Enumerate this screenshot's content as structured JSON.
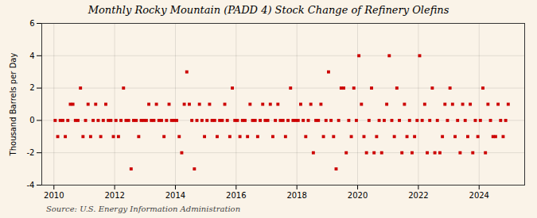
{
  "chart_data": {
    "type": "scatter",
    "title": "Monthly Rocky Mountain (PADD 4) Stock Change of Refinery Olefins",
    "ylabel": "Thousand Barrels per Day",
    "caption": "Source: U.S. Energy Information Administration",
    "color": "#cc0000",
    "marker": "square",
    "grid": true,
    "xlim": [
      2009.6,
      2025.5
    ],
    "xticks": [
      2010,
      2012,
      2014,
      2016,
      2018,
      2020,
      2022,
      2024
    ],
    "ylim": [
      -4,
      6
    ],
    "yticks": [
      -4,
      -2,
      0,
      2,
      4,
      6
    ],
    "x": [
      2010.0416666666667,
      2010.125,
      2010.2083333333333,
      2010.2916666666667,
      2010.375,
      2010.4583333333333,
      2010.5416666666667,
      2010.625,
      2010.7083333333333,
      2010.7916666666667,
      2010.875,
      2010.9583333333333,
      2011.0416666666667,
      2011.125,
      2011.2083333333333,
      2011.2916666666667,
      2011.375,
      2011.4583333333333,
      2011.5416666666667,
      2011.625,
      2011.7083333333333,
      2011.7916666666667,
      2011.875,
      2011.9583333333333,
      2012.0416666666667,
      2012.125,
      2012.2083333333333,
      2012.2916666666667,
      2012.375,
      2012.4583333333333,
      2012.5416666666667,
      2012.625,
      2012.7083333333333,
      2012.7916666666667,
      2012.875,
      2012.9583333333333,
      2013.0416666666667,
      2013.125,
      2013.2083333333333,
      2013.2916666666667,
      2013.375,
      2013.4583333333333,
      2013.5416666666667,
      2013.625,
      2013.7083333333333,
      2013.7916666666667,
      2013.875,
      2013.9583333333333,
      2014.0416666666667,
      2014.125,
      2014.2083333333333,
      2014.2916666666667,
      2014.375,
      2014.4583333333333,
      2014.5416666666667,
      2014.625,
      2014.7083333333333,
      2014.7916666666667,
      2014.875,
      2014.9583333333333,
      2015.0416666666667,
      2015.125,
      2015.2083333333333,
      2015.2916666666667,
      2015.375,
      2015.4583333333333,
      2015.5416666666667,
      2015.625,
      2015.7083333333333,
      2015.7916666666667,
      2015.875,
      2015.9583333333333,
      2016.0416666666667,
      2016.125,
      2016.2083333333333,
      2016.2916666666667,
      2016.375,
      2016.4583333333333,
      2016.5416666666667,
      2016.625,
      2016.7083333333333,
      2016.7916666666667,
      2016.875,
      2016.9583333333333,
      2017.0416666666667,
      2017.125,
      2017.2083333333333,
      2017.2916666666667,
      2017.375,
      2017.4583333333333,
      2017.5416666666667,
      2017.625,
      2017.7083333333333,
      2017.7916666666667,
      2017.875,
      2017.9583333333333,
      2018.0416666666667,
      2018.125,
      2018.2083333333333,
      2018.2916666666667,
      2018.375,
      2018.4583333333333,
      2018.5416666666667,
      2018.625,
      2018.7083333333333,
      2018.7916666666667,
      2018.875,
      2018.9583333333333,
      2019.0416666666667,
      2019.125,
      2019.2083333333333,
      2019.2916666666667,
      2019.375,
      2019.4583333333333,
      2019.5416666666667,
      2019.625,
      2019.7083333333333,
      2019.7916666666667,
      2019.875,
      2019.9583333333333,
      2020.0416666666667,
      2020.125,
      2020.2083333333333,
      2020.2916666666667,
      2020.375,
      2020.4583333333333,
      2020.5416666666667,
      2020.625,
      2020.7083333333333,
      2020.7916666666667,
      2020.875,
      2020.9583333333333,
      2021.0416666666667,
      2021.125,
      2021.2083333333333,
      2021.2916666666667,
      2021.375,
      2021.4583333333333,
      2021.5416666666667,
      2021.625,
      2021.7083333333333,
      2021.7916666666667,
      2021.875,
      2021.9583333333333,
      2022.0416666666667,
      2022.125,
      2022.2083333333333,
      2022.2916666666667,
      2022.375,
      2022.4583333333333,
      2022.5416666666667,
      2022.625,
      2022.7083333333333,
      2022.7916666666667,
      2022.875,
      2022.9583333333333,
      2023.0416666666667,
      2023.125,
      2023.2083333333333,
      2023.2916666666667,
      2023.375,
      2023.4583333333333,
      2023.5416666666667,
      2023.625,
      2023.7083333333333,
      2023.7916666666667,
      2023.875,
      2023.9583333333333,
      2024.0416666666667,
      2024.125,
      2024.2083333333333,
      2024.2916666666667,
      2024.375,
      2024.4583333333333,
      2024.5416666666667,
      2024.625,
      2024.7083333333333,
      2024.7916666666667,
      2024.875,
      2024.9583333333333
    ],
    "values": [
      0,
      -1,
      0,
      0,
      -1,
      0,
      1,
      1,
      0,
      0,
      2,
      -1,
      0,
      1,
      -1,
      0,
      1,
      0,
      -1,
      0,
      1,
      0,
      0,
      -1,
      0,
      -1,
      0,
      2,
      0,
      0,
      -3,
      0,
      0,
      -1,
      0,
      0,
      0,
      1,
      0,
      0,
      1,
      0,
      0,
      -1,
      0,
      1,
      0,
      0,
      0,
      -1,
      -2,
      1,
      3,
      1,
      0,
      -3,
      0,
      1,
      0,
      -1,
      0,
      1,
      0,
      0,
      -1,
      0,
      0,
      1,
      0,
      -1,
      2,
      0,
      0,
      -1,
      0,
      0,
      -1,
      1,
      0,
      0,
      -1,
      0,
      1,
      0,
      0,
      1,
      -1,
      0,
      1,
      0,
      0,
      -1,
      0,
      2,
      0,
      0,
      0,
      1,
      0,
      -1,
      0,
      1,
      -2,
      0,
      0,
      1,
      -1,
      0,
      3,
      0,
      -1,
      -3,
      0,
      2,
      2,
      -2,
      0,
      -1,
      2,
      0,
      4,
      1,
      -1,
      -2,
      0,
      2,
      -2,
      -1,
      0,
      -2,
      0,
      1,
      4,
      0,
      -1,
      2,
      0,
      -2,
      1,
      -1,
      0,
      -2,
      -1,
      0,
      4,
      0,
      1,
      -2,
      0,
      2,
      -2,
      0,
      -2,
      -1,
      1,
      0,
      2,
      1,
      -1,
      0,
      -2,
      1,
      0,
      -1,
      1,
      -2,
      0,
      -1,
      0,
      2,
      -2,
      1,
      0,
      -1,
      -1,
      1,
      0,
      -1,
      0,
      1
    ]
  }
}
